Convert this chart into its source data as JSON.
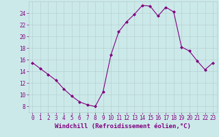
{
  "x": [
    0,
    1,
    2,
    3,
    4,
    5,
    6,
    7,
    8,
    9,
    10,
    11,
    12,
    13,
    14,
    15,
    16,
    17,
    18,
    19,
    20,
    21,
    22,
    23
  ],
  "y": [
    15.5,
    14.5,
    13.5,
    12.5,
    11.0,
    9.8,
    8.8,
    8.3,
    8.0,
    10.5,
    16.8,
    20.8,
    22.5,
    23.8,
    25.3,
    25.2,
    23.5,
    25.0,
    24.2,
    18.2,
    17.5,
    15.8,
    14.3,
    15.5
  ],
  "line_color": "#800080",
  "marker": "D",
  "marker_size": 2,
  "xlabel": "Windchill (Refroidissement éolien,°C)",
  "xlim": [
    -0.5,
    23.5
  ],
  "ylim": [
    7,
    26
  ],
  "yticks": [
    8,
    10,
    12,
    14,
    16,
    18,
    20,
    22,
    24
  ],
  "xticks": [
    0,
    1,
    2,
    3,
    4,
    5,
    6,
    7,
    8,
    9,
    10,
    11,
    12,
    13,
    14,
    15,
    16,
    17,
    18,
    19,
    20,
    21,
    22,
    23
  ],
  "background_color": "#cce9e9",
  "grid_color": "#b0cccc",
  "label_color": "#800080",
  "xlabel_fontsize": 6.5,
  "tick_fontsize": 5.5
}
